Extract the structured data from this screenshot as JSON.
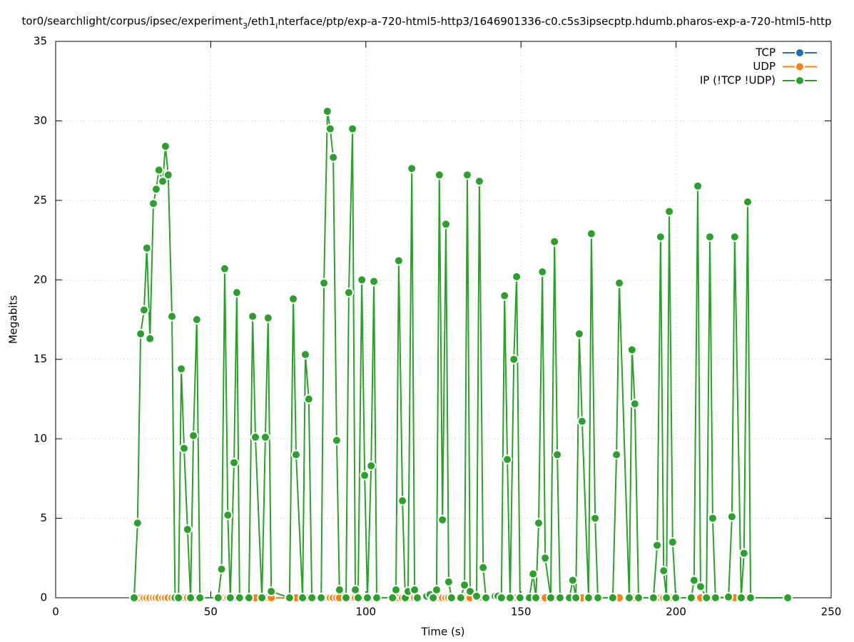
{
  "chart_data": {
    "type": "line",
    "title": "tor0/searchlight/corpus/ipsec/experiment_3/eth1_interface/ptp/exp-a-720-html5-http3/1646901336-c0.c5s3ipsecptp.hdumb.pharos-exp-a-720-html5-http",
    "x_label": "Time (s)",
    "y_label": "Megabits",
    "xlim": [
      0,
      250
    ],
    "xticks": [
      0,
      50,
      100,
      150,
      200,
      250
    ],
    "ylim": [
      0,
      35
    ],
    "yticks": [
      0,
      5,
      10,
      15,
      20,
      25,
      30,
      35
    ],
    "grid": true,
    "legend": "top-right",
    "x": [
      25.3,
      26.4,
      27.4,
      28.5,
      29.4,
      30.4,
      31.5,
      32.4,
      33.3,
      34.5,
      35.4,
      36.3,
      37.5,
      38.5,
      39.6,
      40.5,
      41.4,
      42.5,
      43.5,
      44.4,
      45.5,
      46.5,
      52.4,
      53.5,
      54.5,
      55.5,
      56.3,
      57.5,
      58.4,
      59.3,
      62.3,
      63.5,
      64.4,
      66.5,
      67.6,
      68.5,
      69.5,
      75.4,
      76.6,
      77.5,
      79.6,
      80.5,
      81.6,
      82.6,
      85.6,
      86.5,
      87.6,
      88.5,
      89.5,
      90.6,
      91.5,
      93.6,
      94.5,
      95.7,
      96.6,
      97.5,
      98.7,
      99.6,
      100.5,
      101.7,
      102.6,
      103.5,
      108.6,
      109.7,
      110.6,
      111.8,
      112.7,
      113.6,
      114.8,
      115.7,
      116.6,
      119.6,
      120.7,
      121.7,
      122.8,
      123.7,
      124.7,
      125.8,
      126.7,
      127.6,
      130.6,
      131.8,
      132.7,
      133.6,
      135.7,
      136.6,
      137.8,
      138.7,
      141.7,
      142.6,
      143.7,
      144.7,
      145.6,
      146.5,
      147.7,
      148.6,
      149.7,
      152.7,
      153.9,
      154.8,
      155.7,
      156.9,
      157.8,
      159.6,
      160.8,
      161.7,
      162.6,
      165.6,
      166.7,
      167.7,
      168.8,
      169.7,
      171.8,
      172.7,
      173.9,
      174.8,
      179.6,
      180.8,
      181.7,
      184.9,
      185.8,
      186.7,
      187.9,
      192.7,
      193.9,
      195.0,
      196.0,
      196.9,
      197.8,
      198.9,
      199.9,
      204.9,
      205.8,
      207.0,
      207.9,
      209.8,
      210.9,
      211.8,
      212.7,
      216.9,
      218.0,
      218.9,
      221.0,
      221.9,
      223.1,
      224.0,
      236.0
    ],
    "series": [
      {
        "name": "TCP",
        "color": "#1f6fb4",
        "values": [
          0,
          0,
          0,
          0,
          0,
          0,
          0,
          0,
          0,
          0,
          0,
          0,
          0,
          0,
          0,
          0,
          0,
          0,
          0,
          0,
          0,
          0,
          0,
          0,
          0,
          0,
          0,
          0,
          0,
          0,
          0,
          0,
          0,
          0,
          0,
          0,
          0,
          0,
          0,
          0,
          0,
          0,
          0,
          0,
          0,
          0,
          0,
          0,
          0,
          0,
          0,
          0,
          0,
          0,
          0,
          0,
          0,
          0,
          0,
          0,
          0,
          0,
          0,
          0,
          0,
          0,
          0,
          0,
          0,
          0,
          0,
          0,
          0,
          0,
          0,
          0,
          0,
          0,
          0,
          0,
          0,
          0,
          0,
          0,
          0,
          0,
          0,
          0,
          0,
          0,
          0,
          0,
          0,
          0,
          0,
          0,
          0,
          0,
          0,
          0,
          0,
          0,
          0,
          0,
          0,
          0,
          0,
          0,
          0,
          0,
          0,
          0,
          0,
          0,
          0,
          0,
          0,
          0,
          0,
          0,
          0,
          0,
          0,
          0,
          0,
          0,
          0,
          0,
          0,
          0,
          0,
          0,
          0,
          0,
          0,
          0,
          0,
          0,
          0,
          0,
          0,
          0,
          0,
          0,
          0,
          0,
          0
        ]
      },
      {
        "name": "UDP",
        "color": "#ff7f0e",
        "values": [
          0,
          0,
          0,
          0,
          0,
          0,
          0,
          0,
          0,
          0,
          0,
          0,
          0,
          0,
          0,
          0,
          0,
          0,
          0,
          0,
          0,
          0,
          0,
          0,
          0,
          0,
          0,
          0,
          0,
          0,
          0,
          0,
          0,
          0,
          0,
          0,
          0,
          0,
          0,
          0,
          0,
          0,
          0,
          0,
          0,
          0,
          0,
          0,
          0,
          0,
          0,
          0,
          0,
          0,
          0,
          0,
          0,
          0,
          0,
          0,
          0,
          0,
          0,
          0,
          0,
          0,
          0,
          0,
          0,
          0,
          0,
          0,
          0,
          0,
          0,
          0,
          0,
          0,
          0,
          0,
          0,
          0,
          0,
          0,
          0,
          0,
          0,
          0,
          0,
          0,
          0,
          0,
          0,
          0,
          0,
          0,
          0,
          0,
          0,
          0,
          0,
          0,
          0,
          0,
          0,
          0,
          0,
          0,
          0,
          0,
          0,
          0,
          0,
          0,
          0,
          0,
          0,
          0,
          0,
          0,
          0,
          0,
          0,
          0,
          0,
          0,
          0,
          0,
          0,
          0,
          0,
          0,
          0,
          0,
          0,
          0,
          0,
          0,
          0,
          0,
          0,
          0,
          0,
          0,
          0,
          0,
          0
        ]
      },
      {
        "name": "IP (!TCP  !UDP)",
        "color": "#2ca02c",
        "values": [
          0,
          4.7,
          16.6,
          18.1,
          22.0,
          16.3,
          24.8,
          25.7,
          26.9,
          26.2,
          28.4,
          26.6,
          17.7,
          0,
          0,
          14.4,
          9.4,
          4.3,
          0,
          10.2,
          17.5,
          0,
          0,
          1.8,
          20.7,
          5.2,
          0,
          8.5,
          19.2,
          0,
          0,
          17.7,
          10.1,
          0,
          10.1,
          17.6,
          0.4,
          0,
          18.8,
          9.0,
          0,
          15.3,
          12.5,
          0,
          0,
          19.8,
          30.6,
          29.5,
          27.7,
          9.9,
          0.5,
          0,
          19.2,
          29.5,
          0.5,
          0,
          20.0,
          7.7,
          0,
          8.3,
          19.9,
          0,
          0,
          0.5,
          21.2,
          6.1,
          0,
          0.4,
          27.0,
          0.5,
          0,
          0.1,
          0.2,
          0,
          0.5,
          26.6,
          4.9,
          23.5,
          1.0,
          0,
          0,
          0.8,
          26.6,
          0.4,
          0.1,
          26.2,
          1.9,
          0,
          0.1,
          0.1,
          0,
          19.0,
          8.7,
          0,
          15.0,
          20.2,
          0,
          0,
          1.5,
          0,
          4.7,
          20.5,
          2.5,
          0,
          22.4,
          9.0,
          0,
          0,
          1.1,
          0,
          16.6,
          11.1,
          0,
          22.9,
          5.0,
          0,
          0,
          9.0,
          19.8,
          0,
          15.6,
          12.2,
          0,
          0,
          3.3,
          22.7,
          1.7,
          0,
          24.3,
          3.5,
          0,
          0,
          1.1,
          25.9,
          0.7,
          0,
          22.7,
          5.0,
          0,
          0.05,
          5.1,
          22.7,
          0,
          2.8,
          24.9,
          0,
          0
        ]
      }
    ]
  }
}
